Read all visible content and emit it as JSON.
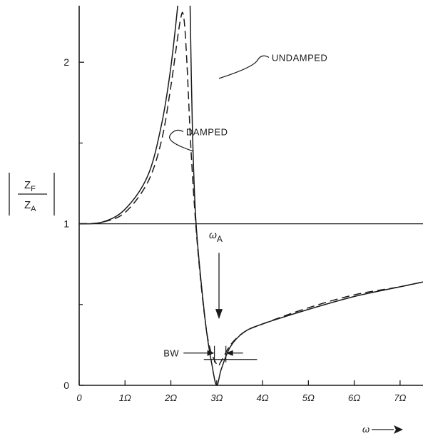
{
  "chart_data": {
    "type": "line",
    "title": "",
    "xlabel": "ω",
    "ylabel": {
      "numerator": "Z",
      "numerator_sub": "F",
      "denominator": "Z",
      "denominator_sub": "A"
    },
    "xlim": [
      0,
      7.5
    ],
    "ylim": [
      0,
      2.35
    ],
    "x_ticks": [
      "0",
      "1Ω",
      "2Ω",
      "3Ω",
      "4Ω",
      "5Ω",
      "6Ω",
      "7Ω"
    ],
    "y_ticks": [
      "0",
      "1",
      "2"
    ],
    "grid": false,
    "reference_line_y": 1,
    "series": [
      {
        "name": "UNDAMPED",
        "style": "solid",
        "segments": [
          [
            [
              0,
              1.0
            ],
            [
              0.5,
              1.01
            ],
            [
              1.0,
              1.09
            ],
            [
              1.5,
              1.3
            ],
            [
              1.8,
              1.62
            ],
            [
              2.0,
              1.97
            ],
            [
              2.15,
              2.35
            ]
          ],
          [
            [
              2.42,
              2.35
            ],
            [
              2.47,
              1.6
            ],
            [
              2.55,
              1.0
            ],
            [
              2.75,
              0.4
            ],
            [
              2.9,
              0.12
            ],
            [
              3.0,
              0.0
            ],
            [
              3.1,
              0.1
            ],
            [
              3.3,
              0.24
            ],
            [
              3.6,
              0.33
            ],
            [
              4.0,
              0.38
            ],
            [
              5.0,
              0.47
            ],
            [
              6.0,
              0.55
            ],
            [
              7.0,
              0.61
            ],
            [
              7.5,
              0.64
            ]
          ]
        ]
      },
      {
        "name": "DAMPED",
        "style": "dashed",
        "segments": [
          [
            [
              0,
              1.0
            ],
            [
              0.5,
              1.01
            ],
            [
              1.0,
              1.07
            ],
            [
              1.5,
              1.26
            ],
            [
              1.8,
              1.52
            ],
            [
              2.0,
              1.85
            ],
            [
              2.2,
              2.25
            ],
            [
              2.28,
              2.28
            ],
            [
              2.35,
              2.0
            ],
            [
              2.45,
              1.4
            ],
            [
              2.6,
              0.8
            ],
            [
              2.8,
              0.3
            ],
            [
              3.0,
              0.13
            ],
            [
              3.1,
              0.15
            ],
            [
              3.3,
              0.25
            ],
            [
              3.6,
              0.33
            ],
            [
              4.0,
              0.38
            ],
            [
              5.0,
              0.48
            ],
            [
              6.0,
              0.56
            ],
            [
              7.0,
              0.61
            ],
            [
              7.5,
              0.64
            ]
          ]
        ]
      }
    ],
    "annotations": [
      {
        "text": "UNDAMPED",
        "x": 4.2,
        "y": 2.03,
        "points_to": [
          3.05,
          1.9
        ]
      },
      {
        "text": "DAMPED",
        "x": 4.2,
        "y": 1.57,
        "points_to": [
          2.48,
          1.45
        ]
      },
      {
        "text": "ω",
        "sub": "A",
        "x": 3.05,
        "y": 0.91,
        "arrow_from_y": 0.82,
        "arrow_to_y": 0.41
      },
      {
        "text": "BW",
        "x": 2.12,
        "y": 0.2,
        "bw_left": 2.95,
        "bw_right": 3.2
      }
    ],
    "bandwidth_line": {
      "y": 0.16,
      "x0": 2.72,
      "x1": 3.88
    }
  }
}
